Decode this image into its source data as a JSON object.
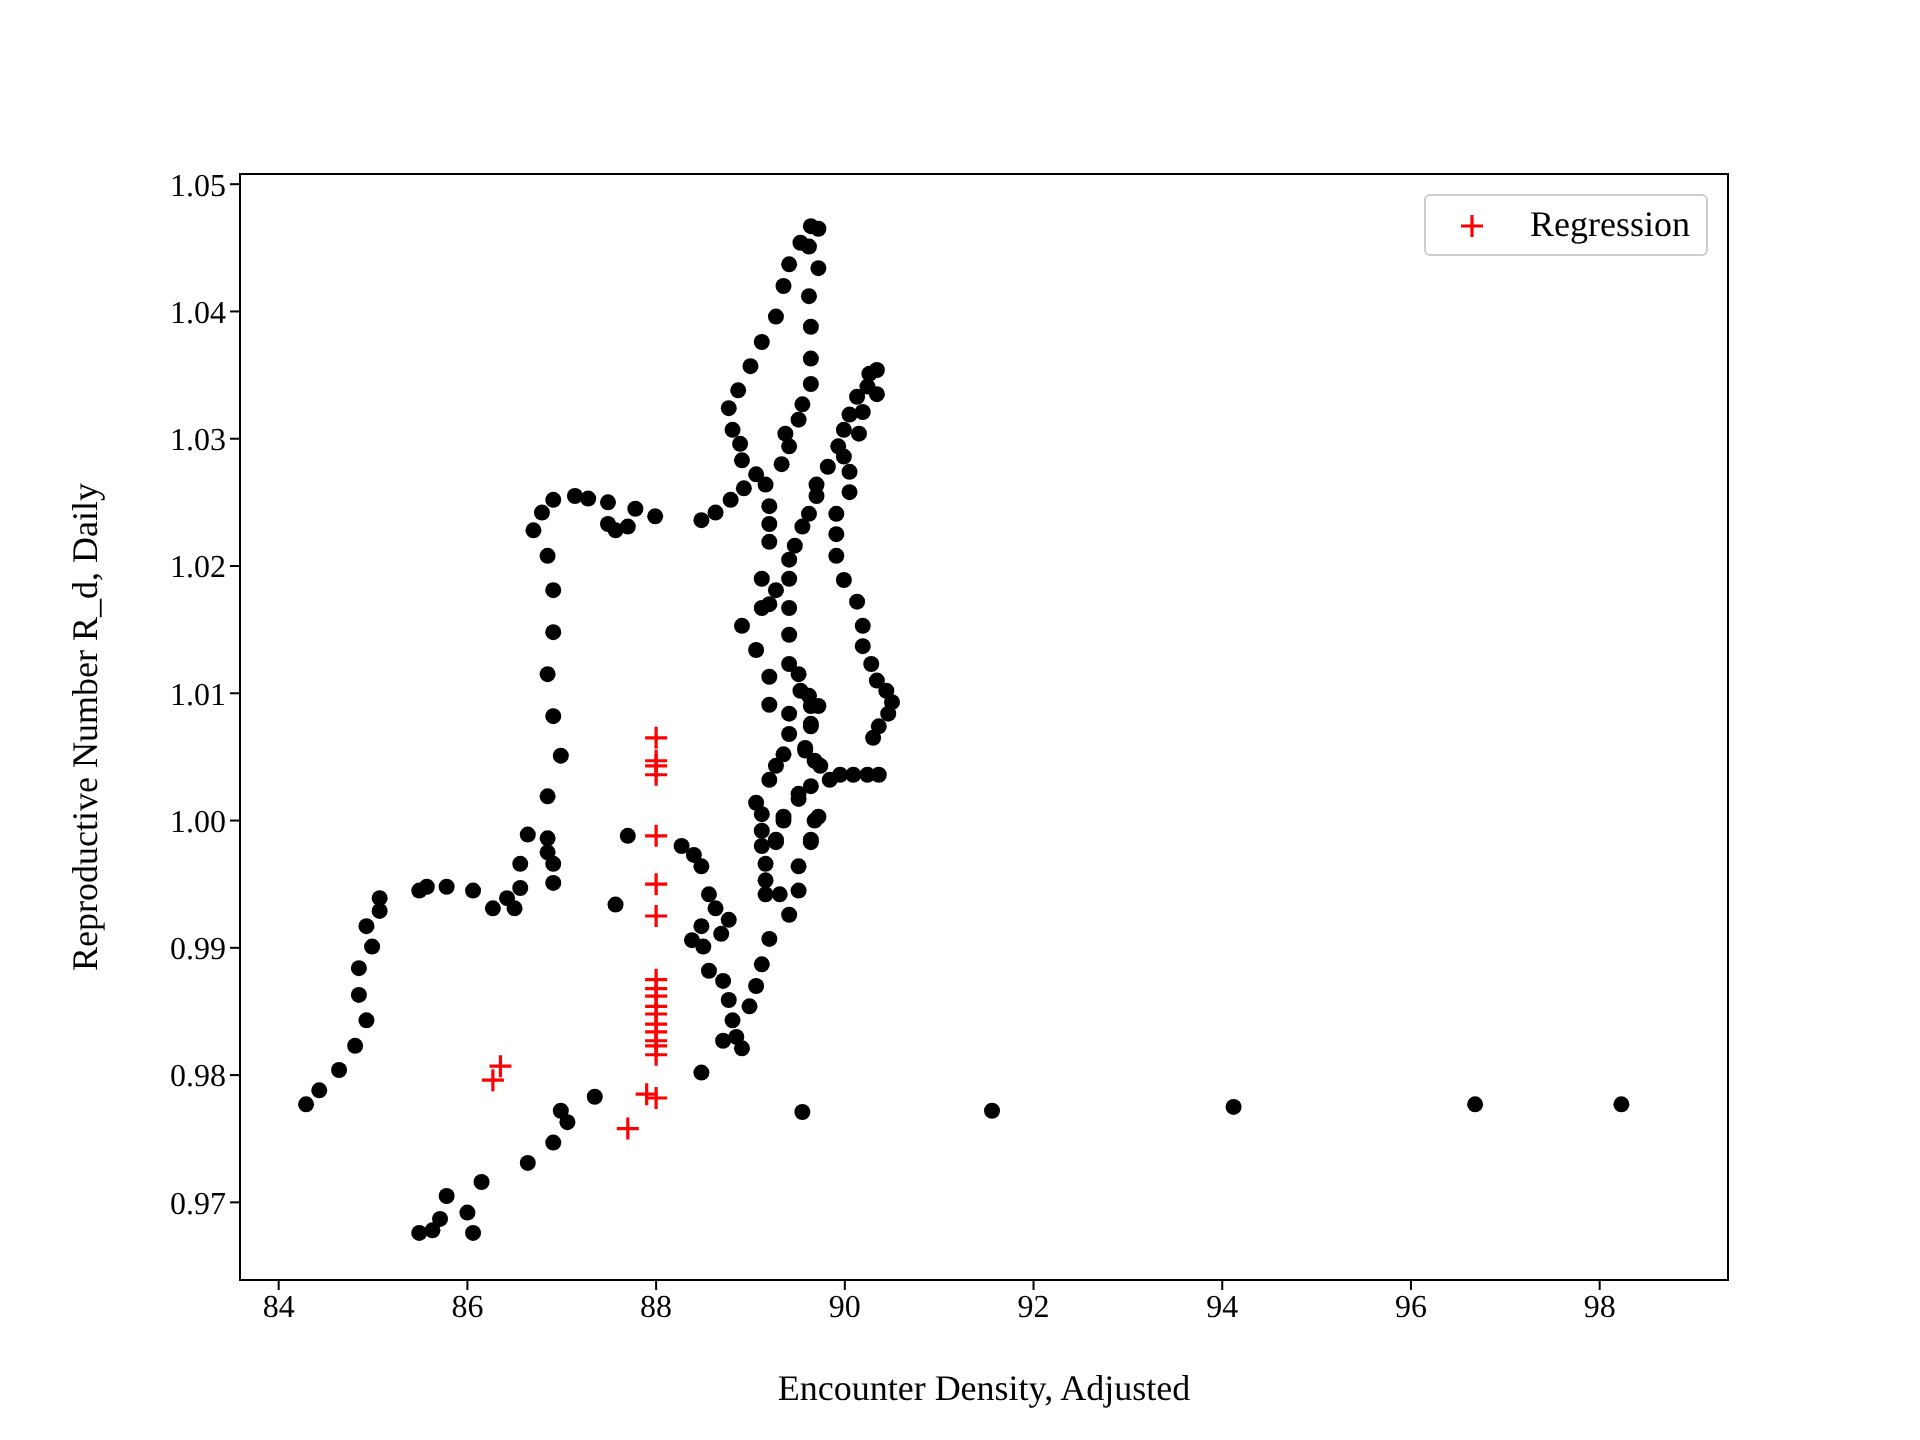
{
  "chart_data": {
    "type": "scatter",
    "xlabel": "Encounter Density, Adjusted",
    "ylabel": "Reproductive Number R_d, Daily",
    "xlim": [
      83.59,
      99.36
    ],
    "xticks": [
      84,
      86,
      88,
      90,
      92,
      94,
      96,
      98
    ],
    "ylim": [
      0.9639,
      1.0508
    ],
    "yticks": [
      0.97,
      0.98,
      0.99,
      {
        "value": 1.0,
        "label": "1.00"
      },
      1.01,
      1.02,
      1.03,
      1.04,
      1.05
    ],
    "grid": false,
    "legend": "top right",
    "series": [
      {
        "color": "#000000",
        "marker": "circle",
        "x": [
          84.29,
          84.43,
          84.64,
          84.81,
          84.93,
          84.85,
          84.85,
          84.99,
          84.93,
          85.07,
          85.07,
          85.49,
          85.57,
          85.78,
          86.06,
          86.27,
          86.42,
          86.5,
          86.56,
          86.56,
          86.91,
          86.91,
          86.85,
          86.85,
          86.64,
          86.85,
          86.99,
          86.91,
          86.85,
          86.91,
          86.91,
          86.85,
          86.7,
          86.79,
          86.91,
          87.14,
          87.28,
          87.49,
          87.49,
          87.57,
          87.7,
          87.78,
          87.99,
          88.48,
          85.49,
          85.63,
          85.71,
          86.06,
          86.0,
          85.78,
          86.15,
          86.64,
          86.91,
          87.06,
          86.99,
          87.35,
          87.57,
          87.7,
          88.48,
          88.27,
          88.4,
          88.48,
          88.56,
          88.63,
          88.48,
          88.38,
          88.5,
          88.77,
          88.69,
          88.56,
          88.71,
          88.77,
          88.81,
          88.85,
          88.71,
          88.91,
          88.99,
          89.06,
          89.12,
          89.2,
          89.41,
          89.16,
          89.31,
          89.51,
          89.16,
          89.51,
          89.16,
          89.12,
          89.27,
          89.64,
          89.12,
          89.35,
          89.68,
          89.12,
          89.06,
          89.51,
          89.2,
          89.27,
          89.35,
          89.58,
          89.41,
          89.64,
          89.64,
          89.41,
          89.2,
          89.53,
          89.51,
          89.2,
          89.41,
          89.06,
          89.41,
          88.91,
          89.12,
          89.41,
          89.64,
          89.72,
          89.53,
          89.62,
          89.41,
          89.72,
          89.35,
          89.62,
          89.27,
          89.64,
          89.12,
          89.64,
          89.0,
          90.34,
          90.26,
          89.64,
          90.24,
          88.87,
          90.13,
          90.34,
          90.19,
          89.55,
          88.77,
          90.05,
          89.51,
          89.37,
          88.81,
          89.99,
          90.15,
          89.41,
          88.89,
          89.33,
          89.93,
          89.99,
          88.91,
          89.82,
          90.05,
          89.06,
          88.93,
          89.7,
          89.16,
          88.79,
          89.2,
          90.05,
          88.63,
          89.7,
          89.62,
          89.2,
          89.91,
          89.55,
          89.2,
          89.91,
          89.47,
          89.41,
          89.91,
          89.12,
          89.41,
          89.27,
          89.99,
          89.2,
          90.13,
          90.19,
          90.19,
          90.28,
          90.34,
          90.44,
          90.5,
          90.46,
          90.36,
          90.3,
          90.36,
          90.24,
          90.09,
          89.95,
          89.84,
          89.62,
          89.72,
          89.64,
          89.58,
          89.68,
          89.74,
          89.64,
          89.51,
          89.72,
          89.35,
          89.64,
          89.27,
          89.55,
          91.56,
          94.12,
          96.68,
          98.23
        ],
        "values": [
          0.9777,
          0.9788,
          0.9804,
          0.9823,
          0.9843,
          0.9863,
          0.9884,
          0.9901,
          0.9917,
          0.9929,
          0.9939,
          0.9945,
          0.9948,
          0.9948,
          0.9945,
          0.9931,
          0.9939,
          0.9931,
          0.9947,
          0.9966,
          0.9951,
          0.9966,
          0.9975,
          0.9986,
          0.9989,
          1.0019,
          1.0051,
          1.0082,
          1.0115,
          1.0148,
          1.0181,
          1.0208,
          1.0228,
          1.0242,
          1.0252,
          1.0255,
          1.0253,
          1.025,
          1.0233,
          1.0228,
          1.0231,
          1.0245,
          1.0239,
          1.0236,
          0.9676,
          0.9678,
          0.9687,
          0.9676,
          0.9692,
          0.9705,
          0.9716,
          0.9731,
          0.9747,
          0.9763,
          0.9772,
          0.9783,
          0.9934,
          0.9988,
          0.9802,
          0.998,
          0.9973,
          0.9964,
          0.9942,
          0.9931,
          0.9917,
          0.9906,
          0.9901,
          0.9922,
          0.9911,
          0.9882,
          0.9874,
          0.9859,
          0.9843,
          0.983,
          0.9827,
          0.9821,
          0.9854,
          0.987,
          0.9887,
          0.9907,
          0.9926,
          0.9942,
          0.9942,
          0.9945,
          0.9953,
          0.9964,
          0.9966,
          0.998,
          0.9983,
          0.9983,
          0.9992,
          1.0,
          1.0,
          1.0005,
          1.0014,
          1.0017,
          1.0032,
          1.0043,
          1.0052,
          1.0055,
          1.0068,
          1.0074,
          1.009,
          1.0084,
          1.0091,
          1.0102,
          1.0115,
          1.0113,
          1.0123,
          1.0134,
          1.0146,
          1.0153,
          1.0167,
          1.0167,
          1.0467,
          1.0465,
          1.0454,
          1.0451,
          1.0437,
          1.0434,
          1.042,
          1.0412,
          1.0396,
          1.0388,
          1.0376,
          1.0363,
          1.0357,
          1.0354,
          1.0351,
          1.0343,
          1.0341,
          1.0338,
          1.0333,
          1.0335,
          1.0321,
          1.0327,
          1.0324,
          1.0319,
          1.0315,
          1.0304,
          1.0307,
          1.0307,
          1.0304,
          1.0294,
          1.0296,
          1.028,
          1.0294,
          1.0286,
          1.0283,
          1.0278,
          1.0274,
          1.0272,
          1.0261,
          1.0264,
          1.0264,
          1.0252,
          1.0247,
          1.0258,
          1.0242,
          1.0255,
          1.0241,
          1.0233,
          1.0241,
          1.0231,
          1.0219,
          1.0225,
          1.0216,
          1.0205,
          1.0208,
          1.019,
          1.019,
          1.0181,
          1.0189,
          1.017,
          1.0172,
          1.0153,
          1.0137,
          1.0123,
          1.011,
          1.0102,
          1.0093,
          1.0084,
          1.0074,
          1.0065,
          1.0036,
          1.0036,
          1.0036,
          1.0036,
          1.0032,
          1.0098,
          1.009,
          1.0076,
          1.0057,
          1.0047,
          1.0043,
          1.0027,
          1.0021,
          1.0003,
          1.0003,
          0.9985,
          0.9985,
          0.9771,
          0.9772,
          0.9775,
          0.9777,
          0.9777
        ]
      },
      {
        "name": "Regression",
        "color": "#ff0000",
        "marker": "cross",
        "x": [
          88.0,
          88.0,
          88.0,
          88.0,
          88.0,
          88.0,
          88.0,
          88.0,
          88.0,
          88.0,
          88.0,
          88.0,
          88.0,
          88.0,
          88.0,
          88.0,
          88.0,
          88.0,
          87.9,
          87.7,
          86.27,
          86.35
        ],
        "values": [
          1.0065,
          1.0047,
          1.0043,
          1.0036,
          0.9988,
          0.995,
          0.9925,
          0.9875,
          0.9868,
          0.9862,
          0.9854,
          0.9848,
          0.984,
          0.9834,
          0.9827,
          0.9823,
          0.9816,
          0.9782,
          0.9785,
          0.9758,
          0.9796,
          0.9807
        ]
      }
    ]
  }
}
